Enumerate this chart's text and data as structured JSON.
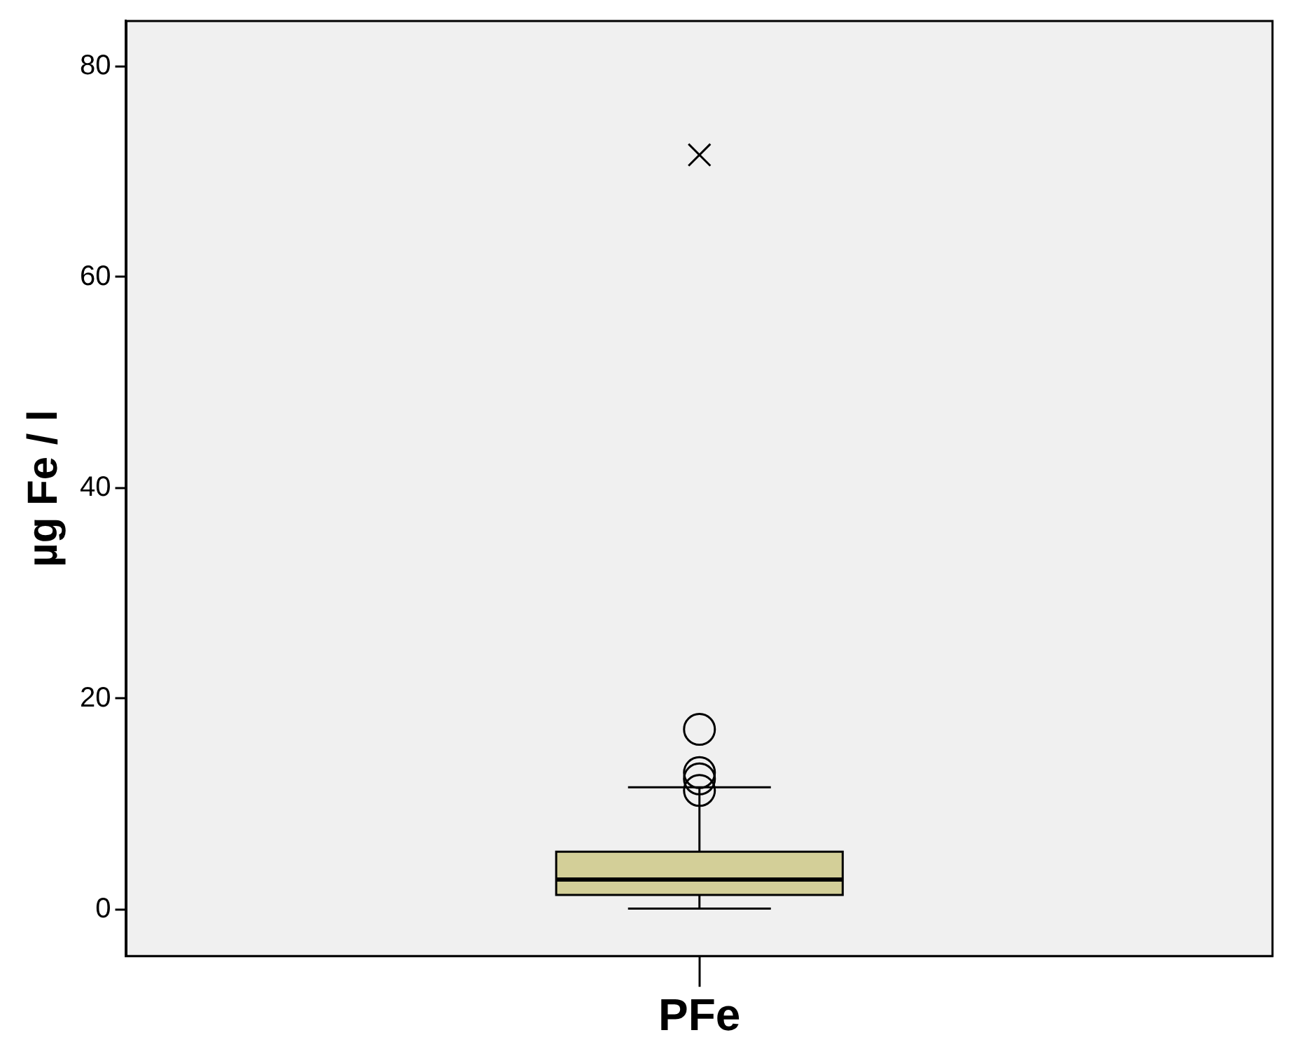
{
  "chart_data": {
    "type": "box",
    "ylabel": "µg Fe / l",
    "categories": [
      "PFe"
    ],
    "boxes": [
      {
        "low": 0.1,
        "q1": 1.4,
        "median": 2.85,
        "q3": 5.5,
        "high": 11.6,
        "outliers": [
          11.3,
          12.4,
          13.0,
          17.1
        ]
      }
    ],
    "color": "#d3cf98",
    "series": [
      {
        "type": "scatter",
        "x": [
          "PFe"
        ],
        "values": [
          71.6
        ],
        "marker": "cross",
        "color": "#000000"
      }
    ],
    "ylim": [
      -4.4,
      84.3
    ],
    "yticks": [
      0,
      20,
      40,
      60,
      80
    ],
    "grid": false,
    "legend": false
  }
}
